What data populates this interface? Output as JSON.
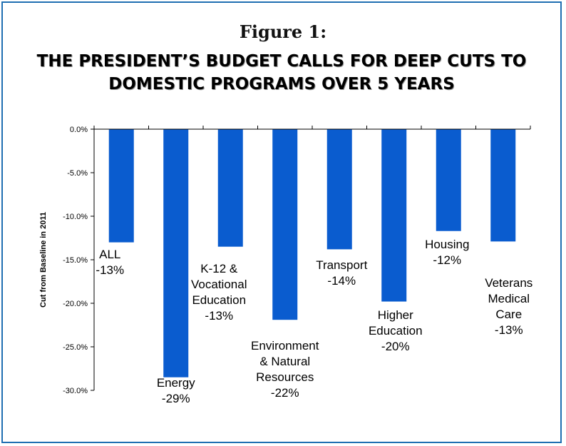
{
  "figure_label": "Figure 1:",
  "colors": {
    "bar": "#0a5ccf",
    "frame": "#1f6fb2"
  },
  "chart_data": {
    "type": "bar",
    "title": "THE PRESIDENT’S BUDGET CALLS FOR DEEP CUTS TO DOMESTIC PROGRAMS OVER 5 YEARS",
    "ylabel": "Cut from Baseline in 2011",
    "xlabel": "",
    "ylim": [
      -30,
      0
    ],
    "yticks": [
      0,
      -5,
      -10,
      -15,
      -20,
      -25,
      -30
    ],
    "ytick_labels": [
      "0.0%",
      "-5.0%",
      "-10.0%",
      "-15.0%",
      "-20.0%",
      "-25.0%",
      "-30.0%"
    ],
    "categories": [
      "ALL",
      "Energy",
      "K-12 & Vocational Education",
      "Environment & Natural Resources",
      "Transport",
      "Higher Education",
      "Housing",
      "Veterans Medical Care"
    ],
    "values": [
      -13.0,
      -28.5,
      -13.5,
      -21.9,
      -13.8,
      -19.8,
      -11.7,
      -12.9
    ],
    "data_labels": [
      [
        "ALL",
        "-13%"
      ],
      [
        "Energy",
        "-29%"
      ],
      [
        "K-12 &",
        "Vocational",
        "Education",
        "-13%"
      ],
      [
        "Environment",
        "& Natural",
        "Resources",
        "-22%"
      ],
      [
        "Transport",
        "-14%"
      ],
      [
        "Higher",
        "Education",
        "-20%"
      ],
      [
        "Housing",
        "-12%"
      ],
      [
        "Veterans",
        "Medical",
        "Care",
        "-13%"
      ]
    ]
  }
}
